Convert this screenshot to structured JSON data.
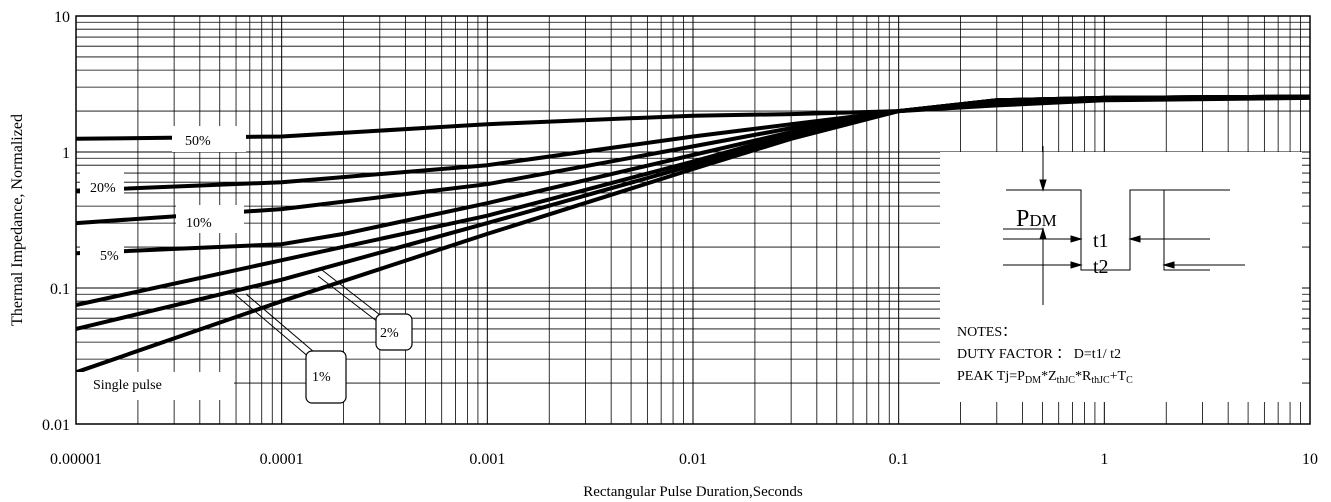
{
  "chart_data": {
    "type": "line",
    "title": "",
    "xlabel": "Rectangular Pulse Duration,Seconds",
    "ylabel": "Thermal Impedance, Normalized",
    "x_scale": "log",
    "y_scale": "log",
    "xlim": [
      1e-05,
      10
    ],
    "ylim": [
      0.01,
      10
    ],
    "grid": true,
    "x_ticks": [
      {
        "value": 1e-05,
        "label": "0.00001"
      },
      {
        "value": 0.0001,
        "label": "0.0001"
      },
      {
        "value": 0.001,
        "label": "0.001"
      },
      {
        "value": 0.01,
        "label": "0.01"
      },
      {
        "value": 0.1,
        "label": "0.1"
      },
      {
        "value": 1,
        "label": "1"
      },
      {
        "value": 10,
        "label": "10"
      }
    ],
    "y_ticks": [
      {
        "value": 0.01,
        "label": "0.01"
      },
      {
        "value": 0.1,
        "label": "0.1"
      },
      {
        "value": 1,
        "label": "1"
      },
      {
        "value": 10,
        "label": "10"
      }
    ],
    "series": [
      {
        "name": "50%",
        "x": [
          1e-05,
          0.0001,
          0.001,
          0.01,
          0.03,
          0.1,
          0.3,
          1,
          10
        ],
        "y": [
          1.25,
          1.3,
          1.6,
          1.85,
          1.9,
          2.0,
          2.2,
          2.4,
          2.5
        ]
      },
      {
        "name": "20%",
        "x": [
          1e-05,
          0.0001,
          0.001,
          0.01,
          0.03,
          0.1,
          0.3,
          1,
          10
        ],
        "y": [
          0.52,
          0.6,
          0.8,
          1.3,
          1.6,
          2.0,
          2.3,
          2.5,
          2.55
        ]
      },
      {
        "name": "10%",
        "x": [
          1e-05,
          0.0001,
          0.001,
          0.01,
          0.03,
          0.1,
          0.3,
          1,
          10
        ],
        "y": [
          0.3,
          0.38,
          0.58,
          1.1,
          1.5,
          2.0,
          2.35,
          2.5,
          2.55
        ]
      },
      {
        "name": "5%",
        "x": [
          1e-05,
          0.0001,
          0.0002,
          0.001,
          0.01,
          0.03,
          0.1,
          0.3,
          1,
          10
        ],
        "y": [
          0.18,
          0.21,
          0.25,
          0.42,
          0.95,
          1.4,
          2.0,
          2.4,
          2.5,
          2.55
        ]
      },
      {
        "name": "2%",
        "x": [
          1e-05,
          0.0001,
          0.001,
          0.01,
          0.03,
          0.1,
          0.3,
          1,
          10
        ],
        "y": [
          0.075,
          0.16,
          0.34,
          0.85,
          1.35,
          2.0,
          2.4,
          2.5,
          2.55
        ]
      },
      {
        "name": "1%",
        "x": [
          1e-05,
          0.0001,
          0.001,
          0.01,
          0.03,
          0.1,
          0.3,
          1,
          10
        ],
        "y": [
          0.05,
          0.115,
          0.3,
          0.8,
          1.3,
          2.0,
          2.4,
          2.5,
          2.55
        ]
      },
      {
        "name": "Single pulse",
        "x": [
          1e-05,
          0.0001,
          0.001,
          0.01,
          0.03,
          0.1,
          0.3,
          1,
          10
        ],
        "y": [
          0.024,
          0.08,
          0.25,
          0.75,
          1.25,
          2.0,
          2.4,
          2.5,
          2.55
        ]
      }
    ],
    "notes": {
      "pdm_symbol": "P",
      "pdm_sub": "DM",
      "t1": "t1",
      "t2": "t2",
      "heading": "NOTES：",
      "duty": "DUTY FACTOR ： D=t1/ t2",
      "peak_prefix": "PEAK Tj=P",
      "peak_sub1": "DM",
      "peak_mid1": "*Z",
      "peak_sub2": "thJC",
      "peak_mid2": "*R",
      "peak_sub3": "thJC",
      "peak_mid3": "+T",
      "peak_sub4": "C"
    }
  }
}
